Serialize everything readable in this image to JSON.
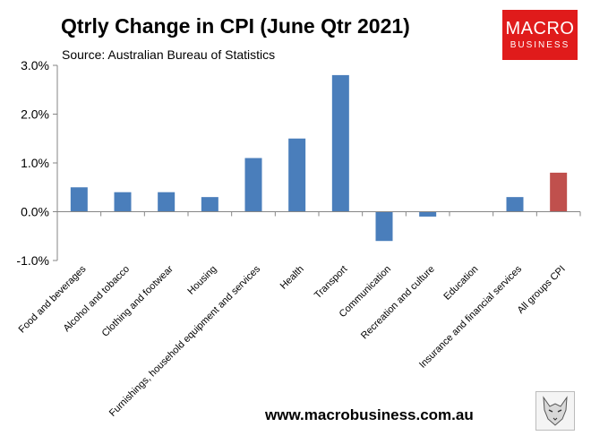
{
  "header": {
    "title": "Qtrly Change in CPI (June Qtr 2021)",
    "subtitle": "Source: Australian Bureau of Statistics"
  },
  "logo": {
    "line1": "MACRO",
    "line2": "BUSINESS",
    "color": "#e01b1b"
  },
  "footer": {
    "website": "www.macrobusiness.com.au",
    "icon": "wolf-icon"
  },
  "chart_data": {
    "type": "bar",
    "title": "Qtrly Change in CPI (June Qtr 2021)",
    "subtitle": "Source: Australian Bureau of Statistics",
    "categories": [
      "Food and beverages",
      "Alcohol and tobacco",
      "Clothing and footwear",
      "Housing",
      "Furnishings, household equipment and services",
      "Health",
      "Transport",
      "Communication",
      "Recreation and culture",
      "Education",
      "Insurance and financial services",
      "All groups CPI"
    ],
    "values": [
      0.5,
      0.4,
      0.4,
      0.3,
      1.1,
      1.5,
      2.8,
      -0.6,
      -0.1,
      0.0,
      0.3,
      0.8
    ],
    "ylim": [
      -1.0,
      3.0
    ],
    "yticks": [
      3.0,
      2.0,
      1.0,
      0.0,
      -1.0
    ],
    "ytick_labels": [
      "3.0%",
      "2.0%",
      "1.0%",
      "0.0%",
      "-1.0%"
    ],
    "unit": "%",
    "colors": {
      "default": "#4a7ebb",
      "highlight": "#c0504d"
    },
    "highlight_index": 11,
    "grid": false,
    "legend": "none"
  }
}
